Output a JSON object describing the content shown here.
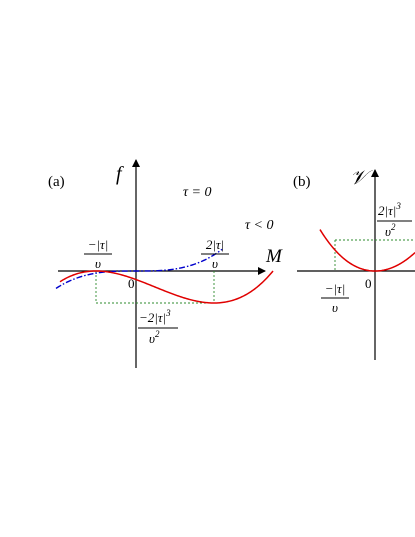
{
  "panel_a": {
    "label": "(a)",
    "y_axis_label": "f",
    "x_axis_label": "M",
    "origin_label": "0",
    "curve_tau_zero_label": "τ = 0",
    "curve_tau_neg_label": "τ < 0",
    "left_tick": {
      "num": "−|τ|",
      "den": "υ"
    },
    "right_tick": {
      "num": "2|τ|",
      "den": "υ"
    },
    "min_value": {
      "num": "−2|τ|",
      "sup": "3",
      "den": "υ",
      "den_sup": "2"
    },
    "colors": {
      "tau_neg": "#e00000",
      "tau_zero": "#0000cc",
      "guides": "#2e8b2e",
      "axes": "#000000"
    }
  },
  "panel_b": {
    "label": "(b)",
    "y_axis_label": "𝒱",
    "origin_label": "0",
    "left_tick": {
      "num": "−|τ|",
      "den": "υ"
    },
    "level_value": {
      "num": "2|τ|",
      "sup": "3",
      "den": "υ",
      "den_sup": "2"
    },
    "colors": {
      "curve": "#e00000",
      "guides": "#2e8b2e",
      "axes": "#000000"
    }
  }
}
